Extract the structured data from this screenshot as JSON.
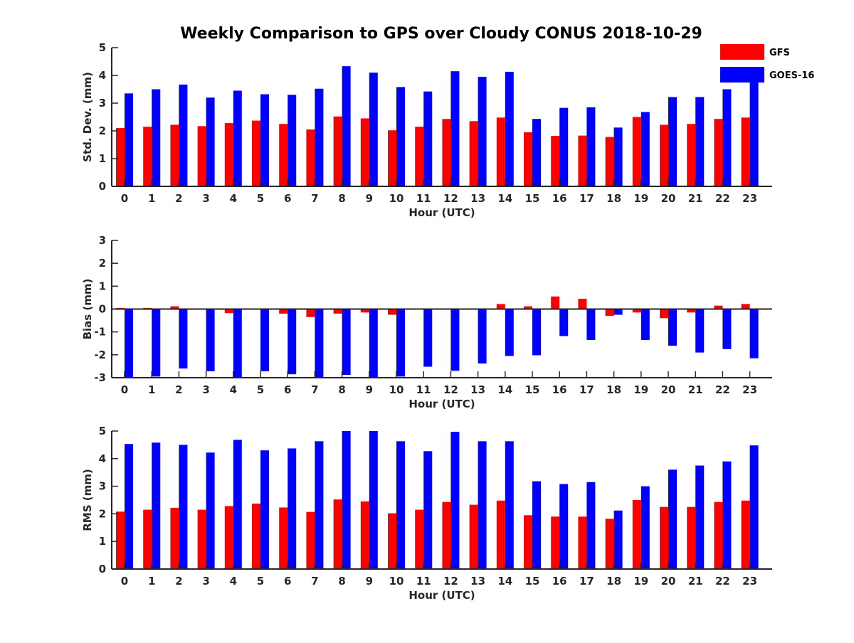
{
  "title": "Weekly Comparison to GPS over Cloudy CONUS 2018-10-29",
  "colors": {
    "GFS": "#ff0000",
    "GOES-16": "#0000ff",
    "axis": "#262626"
  },
  "legend": {
    "placement": "top-right",
    "items": [
      "GFS",
      "GOES-16"
    ]
  },
  "chart_data": [
    {
      "type": "bar",
      "xlabel": "Hour (UTC)",
      "ylabel": "Std. Dev. (mm)",
      "ylim": [
        0,
        5
      ],
      "yticks": [
        0,
        1,
        2,
        3,
        4,
        5
      ],
      "categories": [
        "0",
        "1",
        "2",
        "3",
        "4",
        "5",
        "6",
        "7",
        "8",
        "9",
        "10",
        "11",
        "12",
        "13",
        "14",
        "15",
        "16",
        "17",
        "18",
        "19",
        "20",
        "21",
        "22",
        "23"
      ],
      "series": [
        {
          "name": "GFS",
          "values": [
            2.1,
            2.15,
            2.22,
            2.17,
            2.28,
            2.37,
            2.25,
            2.05,
            2.52,
            2.45,
            2.02,
            2.15,
            2.43,
            2.35,
            2.48,
            1.95,
            1.82,
            1.83,
            1.78,
            2.5,
            2.22,
            2.25,
            2.43,
            2.48
          ]
        },
        {
          "name": "GOES-16",
          "values": [
            3.35,
            3.5,
            3.67,
            3.2,
            3.45,
            3.32,
            3.3,
            3.52,
            4.33,
            4.1,
            3.58,
            3.42,
            4.15,
            3.95,
            4.13,
            2.43,
            2.83,
            2.85,
            2.12,
            2.68,
            3.22,
            3.22,
            3.5,
            3.9
          ]
        }
      ]
    },
    {
      "type": "bar",
      "xlabel": "Hour (UTC)",
      "ylabel": "Bias (mm)",
      "ylim": [
        -3,
        3
      ],
      "yticks": [
        -3,
        -2,
        -1,
        0,
        1,
        2,
        3
      ],
      "categories": [
        "0",
        "1",
        "2",
        "3",
        "4",
        "5",
        "6",
        "7",
        "8",
        "9",
        "10",
        "11",
        "12",
        "13",
        "14",
        "15",
        "16",
        "17",
        "18",
        "19",
        "20",
        "21",
        "22",
        "23"
      ],
      "series": [
        {
          "name": "GFS",
          "values": [
            0.05,
            0.05,
            0.12,
            0.0,
            -0.18,
            0.0,
            -0.2,
            -0.35,
            -0.2,
            -0.15,
            -0.25,
            0.03,
            0.0,
            0.0,
            0.22,
            0.12,
            0.55,
            0.45,
            -0.3,
            -0.15,
            -0.4,
            -0.15,
            0.15,
            0.22
          ]
        },
        {
          "name": "GOES-16",
          "values": [
            -2.98,
            -2.95,
            -2.6,
            -2.72,
            -2.98,
            -2.72,
            -2.85,
            -2.98,
            -2.88,
            -2.98,
            -2.95,
            -2.52,
            -2.7,
            -2.38,
            -2.05,
            -2.02,
            -1.18,
            -1.35,
            -0.25,
            -1.35,
            -1.6,
            -1.9,
            -1.75,
            -2.15
          ]
        }
      ]
    },
    {
      "type": "bar",
      "xlabel": "Hour (UTC)",
      "ylabel": "RMS (mm)",
      "ylim": [
        0,
        5
      ],
      "yticks": [
        0,
        1,
        2,
        3,
        4,
        5
      ],
      "categories": [
        "0",
        "1",
        "2",
        "3",
        "4",
        "5",
        "6",
        "7",
        "8",
        "9",
        "10",
        "11",
        "12",
        "13",
        "14",
        "15",
        "16",
        "17",
        "18",
        "19",
        "20",
        "21",
        "22",
        "23"
      ],
      "series": [
        {
          "name": "GFS",
          "values": [
            2.08,
            2.15,
            2.22,
            2.15,
            2.28,
            2.37,
            2.23,
            2.07,
            2.52,
            2.45,
            2.02,
            2.15,
            2.43,
            2.33,
            2.48,
            1.95,
            1.9,
            1.9,
            1.82,
            2.5,
            2.25,
            2.25,
            2.43,
            2.48
          ]
        },
        {
          "name": "GOES-16",
          "values": [
            4.53,
            4.58,
            4.5,
            4.22,
            4.68,
            4.3,
            4.37,
            4.63,
            5.0,
            5.0,
            4.63,
            4.27,
            4.97,
            4.63,
            4.63,
            3.18,
            3.08,
            3.15,
            2.12,
            3.0,
            3.6,
            3.75,
            3.9,
            4.48
          ]
        }
      ]
    }
  ]
}
